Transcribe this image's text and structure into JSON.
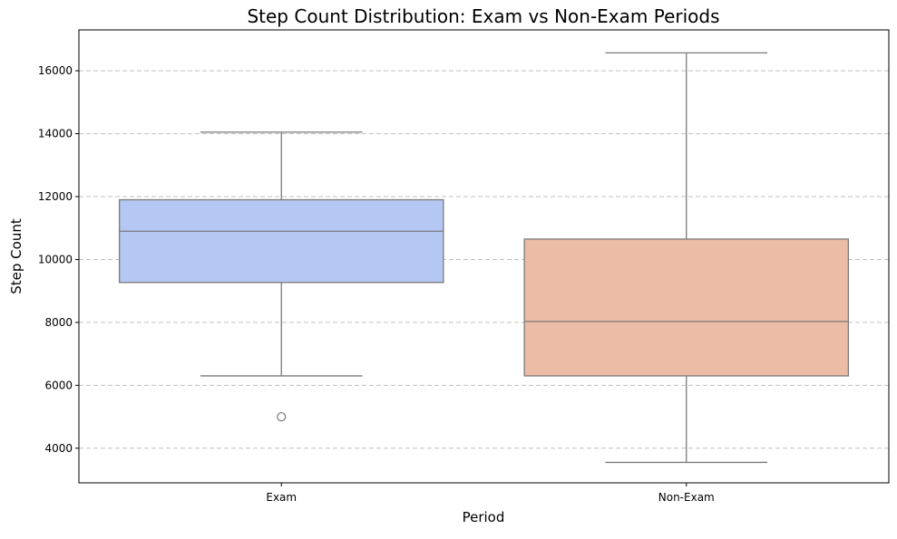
{
  "chart_data": {
    "type": "box",
    "title": "Step Count Distribution: Exam vs Non-Exam Periods",
    "xlabel": "Period",
    "ylabel": "Step Count",
    "categories": [
      "Exam",
      "Non-Exam"
    ],
    "ylim": [
      2900,
      17300
    ],
    "yticks": [
      4000,
      6000,
      8000,
      10000,
      12000,
      14000,
      16000
    ],
    "grid": "y, dashed",
    "boxes": [
      {
        "category": "Exam",
        "whisker_low": 6300,
        "q1": 9270,
        "median": 10900,
        "q3": 11900,
        "whisker_high": 14050,
        "outliers": [
          5000
        ],
        "color": "#b4c8f3"
      },
      {
        "category": "Non-Exam",
        "whisker_low": 3550,
        "q1": 6300,
        "median": 8030,
        "q3": 10650,
        "whisker_high": 16570,
        "outliers": [],
        "color": "#ecbca6"
      }
    ],
    "line_color": "#7a7a7a"
  }
}
